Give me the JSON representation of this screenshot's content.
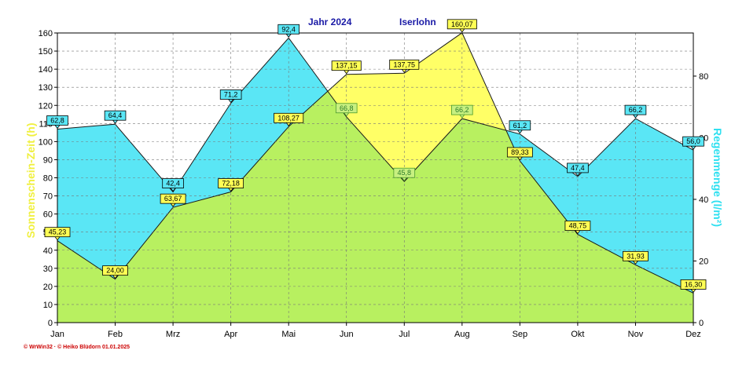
{
  "chart_data": {
    "type": "area",
    "title_left": "Jahr  2024",
    "title_right": "Iserlohn",
    "categories": [
      "Jan",
      "Feb",
      "Mrz",
      "Apr",
      "Mai",
      "Jun",
      "Jul",
      "Aug",
      "Sep",
      "Okt",
      "Nov",
      "Dez"
    ],
    "ylabel_left": "Sonnenschein-Zeit  (h)",
    "ylabel_right": "Regenmenge  (l/m²)",
    "ylim_left": [
      0,
      160
    ],
    "ylim_right": [
      0,
      94
    ],
    "yticks_left": [
      0,
      10,
      20,
      30,
      40,
      50,
      60,
      70,
      80,
      90,
      100,
      110,
      120,
      130,
      140,
      150,
      160
    ],
    "yticks_right": [
      0,
      20,
      40,
      60,
      80
    ],
    "grid": true,
    "series": [
      {
        "name": "Sonnenschein-Zeit",
        "axis": "left",
        "color": "#ffff66",
        "values": [
          45.23,
          24.0,
          63.67,
          72.18,
          108.27,
          137.15,
          137.75,
          160.07,
          89.33,
          48.75,
          31.93,
          16.3
        ],
        "labels": [
          "45,23",
          "24,00",
          "63,67",
          "72,18",
          "108,27",
          "137,15",
          "137,75",
          "160,07",
          "89,33",
          "48,75",
          "31,93",
          "16,30"
        ]
      },
      {
        "name": "Regenmenge",
        "axis": "right",
        "color": "#5ae6f5",
        "values": [
          62.8,
          64.4,
          42.4,
          71.2,
          92.4,
          66.8,
          45.8,
          66.2,
          61.2,
          47.4,
          66.2,
          56.0
        ],
        "labels": [
          "62,8",
          "64,4",
          "42,4",
          "71,2",
          "92,4",
          "66,8",
          "45,8",
          "66,2",
          "61,2",
          "47,4",
          "66,2",
          "56,0"
        ]
      }
    ],
    "overlap_color": "#b8f060",
    "credit": "© WrWin32 · © Heiko Blüdorn  01.01.2025"
  }
}
